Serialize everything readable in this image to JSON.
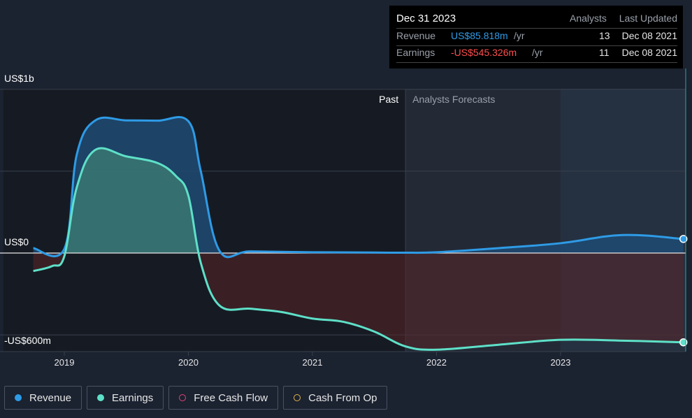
{
  "chart_data": {
    "type": "area",
    "y_axis_labels": [
      "US$1b",
      "US$0",
      "-US$600m"
    ],
    "ylim": [
      -600,
      1000
    ],
    "x_ticks": [
      "2019",
      "2020",
      "2021",
      "2022",
      "2023"
    ],
    "region_labels": {
      "past": "Past",
      "forecast": "Analysts Forecasts"
    },
    "series": [
      {
        "name": "Revenue",
        "color": "#2e9be6",
        "x": [
          2018.75,
          2019.0,
          2019.1,
          2019.25,
          2019.5,
          2019.75,
          2020.0,
          2020.1,
          2020.25,
          2020.5,
          2021.0,
          2021.5,
          2021.75,
          2022.0,
          2022.5,
          2023.0,
          2023.5,
          2023.99
        ],
        "values": [
          30,
          25,
          600,
          810,
          810,
          808,
          805,
          500,
          15,
          10,
          5,
          3,
          2,
          5,
          30,
          60,
          110,
          86
        ]
      },
      {
        "name": "Earnings",
        "color": "#5ee0c8",
        "x": [
          2018.75,
          2018.9,
          2019.0,
          2019.1,
          2019.25,
          2019.5,
          2019.75,
          2019.9,
          2020.0,
          2020.1,
          2020.25,
          2020.5,
          2020.75,
          2021.0,
          2021.25,
          2021.5,
          2021.75,
          2022.0,
          2022.5,
          2023.0,
          2023.5,
          2023.99
        ],
        "values": [
          -110,
          -80,
          -20,
          400,
          630,
          590,
          550,
          470,
          350,
          -60,
          -320,
          -340,
          -360,
          -400,
          -420,
          -480,
          -570,
          -590,
          -560,
          -530,
          -535,
          -545
        ]
      }
    ],
    "grid": true
  },
  "tooltip": {
    "date": "Dec 31 2023",
    "col_analysts": "Analysts",
    "col_updated": "Last Updated",
    "rows": [
      {
        "label": "Revenue",
        "value": "US$85.818m",
        "unit": "/yr",
        "analysts": "13",
        "updated": "Dec 08 2021",
        "color": "#2e9be6"
      },
      {
        "label": "Earnings",
        "value": "-US$545.326m",
        "unit": "/yr",
        "analysts": "11",
        "updated": "Dec 08 2021",
        "color": "#ff4d4d"
      }
    ]
  },
  "legend": [
    {
      "label": "Revenue",
      "color": "#2e9be6",
      "filled": true
    },
    {
      "label": "Earnings",
      "color": "#5ee0c8",
      "filled": true
    },
    {
      "label": "Free Cash Flow",
      "color": "#e0457b",
      "filled": false
    },
    {
      "label": "Cash From Op",
      "color": "#e6b34a",
      "filled": false
    }
  ]
}
